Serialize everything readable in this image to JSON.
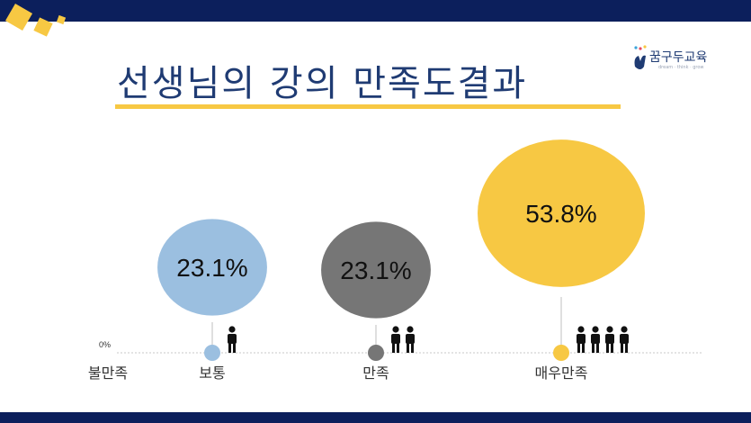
{
  "title": "선생님의 강의 만족도결과",
  "logo": {
    "name": "꿈구두교육",
    "sub": "dream · think · grow"
  },
  "colors": {
    "header_bar": "#0c1f5c",
    "accent_yellow": "#f7c843",
    "title_text": "#1f3b73"
  },
  "chart_data": {
    "type": "bubble",
    "title": "선생님의 강의 만족도결과",
    "baseline_tick": "0%",
    "categories": [
      "불만족",
      "보통",
      "만족",
      "매우만족"
    ],
    "values": [
      0,
      23.1,
      23.1,
      53.8
    ],
    "value_labels": [
      "",
      "23.1%",
      "23.1%",
      "53.8%"
    ],
    "colors": [
      "",
      "#9bbfe0",
      "#767676",
      "#f7c843"
    ],
    "people_icons": [
      0,
      1,
      2,
      4
    ],
    "grid": false
  }
}
